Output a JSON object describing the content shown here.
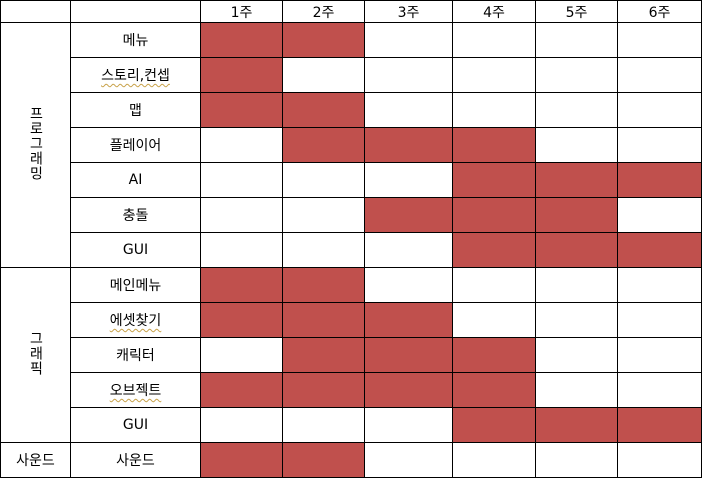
{
  "colors": {
    "filled": "#c0504d",
    "empty": "#ffffff",
    "border": "#000000"
  },
  "weeks": [
    "1주",
    "2주",
    "3주",
    "4주",
    "5주",
    "6주"
  ],
  "groups": [
    {
      "name": "프로그래밍",
      "tasks": [
        {
          "label": "메뉴",
          "weeks": [
            true,
            true,
            false,
            false,
            false,
            false
          ]
        },
        {
          "label": "스토리,컨셉",
          "weeks": [
            true,
            false,
            false,
            false,
            false,
            false
          ]
        },
        {
          "label": "맵",
          "weeks": [
            true,
            true,
            false,
            false,
            false,
            false
          ]
        },
        {
          "label": "플레이어",
          "weeks": [
            false,
            true,
            true,
            true,
            false,
            false
          ]
        },
        {
          "label": "AI",
          "weeks": [
            false,
            false,
            false,
            true,
            true,
            true
          ]
        },
        {
          "label": "충돌",
          "weeks": [
            false,
            false,
            true,
            true,
            true,
            false
          ]
        },
        {
          "label": "GUI",
          "weeks": [
            false,
            false,
            false,
            true,
            true,
            true
          ]
        }
      ]
    },
    {
      "name": "그래픽",
      "tasks": [
        {
          "label": "메인메뉴",
          "weeks": [
            true,
            true,
            false,
            false,
            false,
            false
          ]
        },
        {
          "label": "에셋찾기",
          "weeks": [
            true,
            true,
            true,
            false,
            false,
            false
          ]
        },
        {
          "label": "캐릭터",
          "weeks": [
            false,
            true,
            true,
            true,
            false,
            false
          ]
        },
        {
          "label": "오브젝트",
          "weeks": [
            true,
            true,
            true,
            true,
            false,
            false
          ]
        },
        {
          "label": "GUI",
          "weeks": [
            false,
            false,
            false,
            true,
            true,
            true
          ]
        }
      ]
    },
    {
      "name": "사운드",
      "tasks": [
        {
          "label": "사운드",
          "weeks": [
            true,
            true,
            false,
            false,
            false,
            false
          ]
        }
      ]
    }
  ]
}
